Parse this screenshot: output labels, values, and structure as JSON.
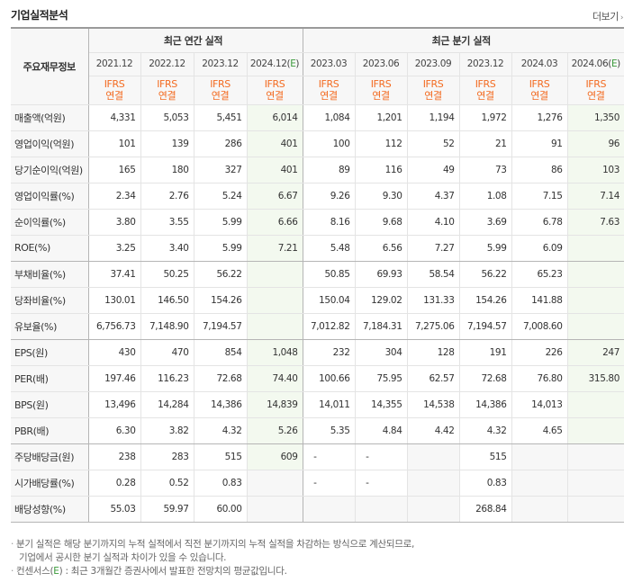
{
  "header": {
    "title": "기업실적분석",
    "more_label": "더보기"
  },
  "table": {
    "row_header_label": "주요재무정보",
    "annual_group_label": "최근 연간 실적",
    "quarter_group_label": "최근 분기 실적",
    "annual_periods": [
      "2021.12",
      "2022.12",
      "2023.12",
      "2024.12(E)"
    ],
    "quarter_periods": [
      "2023.03",
      "2023.06",
      "2023.09",
      "2023.12",
      "2024.03",
      "2024.06(E)"
    ],
    "standard_line1": "IFRS",
    "standard_line2": "연결",
    "rows": [
      {
        "label": "매출액(억원)",
        "values": [
          "4,331",
          "5,053",
          "5,451",
          "6,014",
          "1,084",
          "1,201",
          "1,194",
          "1,972",
          "1,276",
          "1,350"
        ]
      },
      {
        "label": "영업이익(억원)",
        "values": [
          "101",
          "139",
          "286",
          "401",
          "100",
          "112",
          "52",
          "21",
          "91",
          "96"
        ]
      },
      {
        "label": "당기순이익(억원)",
        "values": [
          "165",
          "180",
          "327",
          "401",
          "89",
          "116",
          "49",
          "73",
          "86",
          "103"
        ]
      },
      {
        "label": "영업이익률(%)",
        "values": [
          "2.34",
          "2.76",
          "5.24",
          "6.67",
          "9.26",
          "9.30",
          "4.37",
          "1.08",
          "7.15",
          "7.14"
        ]
      },
      {
        "label": "순이익률(%)",
        "values": [
          "3.80",
          "3.55",
          "5.99",
          "6.66",
          "8.16",
          "9.68",
          "4.10",
          "3.69",
          "6.78",
          "7.63"
        ]
      },
      {
        "label": "ROE(%)",
        "values": [
          "3.25",
          "3.40",
          "5.99",
          "7.21",
          "5.48",
          "6.56",
          "7.27",
          "5.99",
          "6.09",
          ""
        ]
      },
      {
        "label": "부채비율(%)",
        "values": [
          "37.41",
          "50.25",
          "56.22",
          "",
          "50.85",
          "69.93",
          "58.54",
          "56.22",
          "65.23",
          ""
        ]
      },
      {
        "label": "당좌비율(%)",
        "values": [
          "130.01",
          "146.50",
          "154.26",
          "",
          "150.04",
          "129.02",
          "131.33",
          "154.26",
          "141.88",
          ""
        ]
      },
      {
        "label": "유보율(%)",
        "values": [
          "6,756.73",
          "7,148.90",
          "7,194.57",
          "",
          "7,012.82",
          "7,184.31",
          "7,275.06",
          "7,194.57",
          "7,008.60",
          ""
        ]
      },
      {
        "label": "EPS(원)",
        "values": [
          "430",
          "470",
          "854",
          "1,048",
          "232",
          "304",
          "128",
          "191",
          "226",
          "247"
        ]
      },
      {
        "label": "PER(배)",
        "values": [
          "197.46",
          "116.23",
          "72.68",
          "74.40",
          "100.66",
          "75.95",
          "62.57",
          "72.68",
          "76.80",
          "315.80"
        ]
      },
      {
        "label": "BPS(원)",
        "values": [
          "13,496",
          "14,284",
          "14,386",
          "14,839",
          "14,011",
          "14,355",
          "14,538",
          "14,386",
          "14,013",
          ""
        ]
      },
      {
        "label": "PBR(배)",
        "values": [
          "6.30",
          "3.82",
          "4.32",
          "5.26",
          "5.35",
          "4.84",
          "4.42",
          "4.32",
          "4.65",
          ""
        ]
      },
      {
        "label": "주당배당금(원)",
        "values": [
          "238",
          "283",
          "515",
          "609",
          "-",
          "-",
          "",
          "515",
          "",
          ""
        ]
      },
      {
        "label": "시가배당률(%)",
        "values": [
          "0.28",
          "0.52",
          "0.83",
          "",
          "-",
          "-",
          "",
          "0.83",
          "",
          ""
        ]
      },
      {
        "label": "배당성향(%)",
        "values": [
          "55.03",
          "59.97",
          "60.00",
          "",
          "",
          "",
          "",
          "268.84",
          "",
          ""
        ]
      }
    ]
  },
  "notes": {
    "line1": "분기 실적은 해당 분기까지의 누적 실적에서 직전 분기까지의 누적 실적을 차감하는 방식으로 계산되므로,",
    "line2": "기업에서 공시한 분기 실적과 차이가 있을 수 있습니다.",
    "line3_prefix": "컨센서스(",
    "line3_mark": "E",
    "line3_suffix": ") : 최근 3개월간 증권사에서 발표한 전망치의 평균값입니다."
  }
}
